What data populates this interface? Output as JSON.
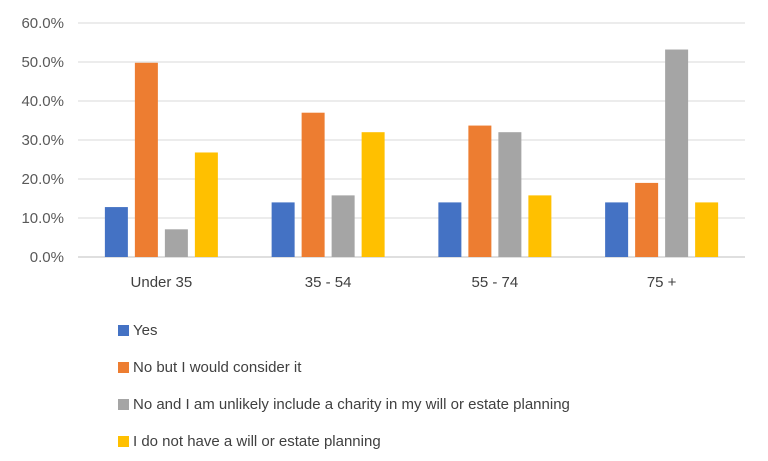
{
  "chart_data": {
    "type": "bar",
    "categories": [
      "Under 35",
      "35 - 54",
      "55 - 74",
      "75 +"
    ],
    "series": [
      {
        "name": "Yes",
        "color": "#4472C4",
        "values": [
          12.8,
          14.0,
          14.0,
          14.0
        ]
      },
      {
        "name": "No but I would consider it",
        "color": "#ED7D31",
        "values": [
          49.8,
          37.0,
          33.7,
          19.0
        ]
      },
      {
        "name": "No and I am unlikely include a charity in my will or estate planning",
        "color": "#A5A5A5",
        "values": [
          7.1,
          15.8,
          32.0,
          53.2
        ]
      },
      {
        "name": "I do not have a will or estate planning",
        "color": "#FFC000",
        "values": [
          26.8,
          32.0,
          15.8,
          14.0
        ]
      }
    ],
    "ylim": [
      0,
      60
    ],
    "yticks": [
      "0.0%",
      "10.0%",
      "20.0%",
      "30.0%",
      "40.0%",
      "50.0%",
      "60.0%"
    ],
    "grid": true,
    "legend_position": "bottom",
    "title": "",
    "xlabel": "",
    "ylabel": ""
  }
}
